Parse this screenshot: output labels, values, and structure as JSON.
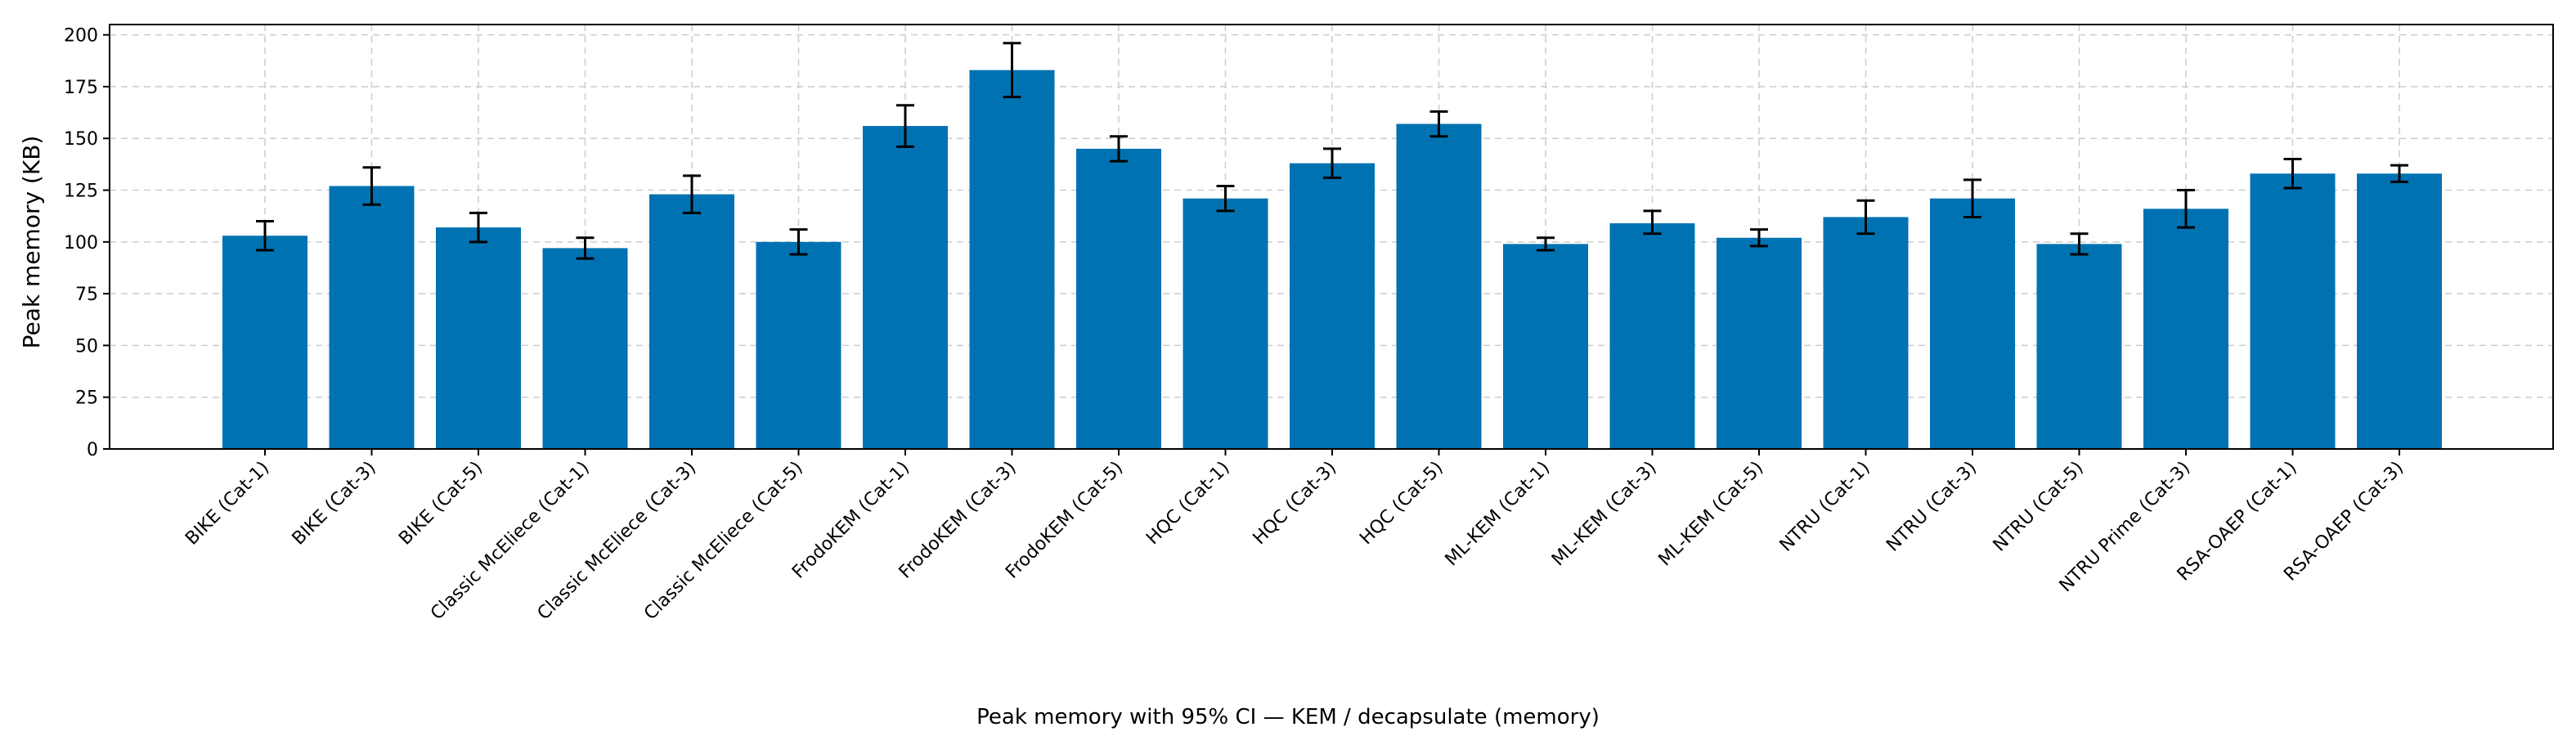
{
  "chart_data": {
    "type": "bar",
    "caption": "Peak memory with 95% CI — KEM / decapsulate (memory)",
    "ylabel": "Peak memory (KB)",
    "xlabel": "",
    "ylim": [
      0,
      205
    ],
    "yticks": [
      0,
      25,
      50,
      75,
      100,
      125,
      150,
      175,
      200
    ],
    "grid": true,
    "bar_color": "#0072b2",
    "categories": [
      "BIKE (Cat-1)",
      "BIKE (Cat-3)",
      "BIKE (Cat-5)",
      "Classic McEliece (Cat-1)",
      "Classic McEliece (Cat-3)",
      "Classic McEliece (Cat-5)",
      "FrodoKEM (Cat-1)",
      "FrodoKEM (Cat-3)",
      "FrodoKEM (Cat-5)",
      "HQC (Cat-1)",
      "HQC (Cat-3)",
      "HQC (Cat-5)",
      "ML-KEM (Cat-1)",
      "ML-KEM (Cat-3)",
      "ML-KEM (Cat-5)",
      "NTRU (Cat-1)",
      "NTRU (Cat-3)",
      "NTRU (Cat-5)",
      "NTRU Prime (Cat-3)",
      "RSA-OAEP (Cat-1)",
      "RSA-OAEP (Cat-3)"
    ],
    "values": [
      103,
      127,
      107,
      97,
      123,
      100,
      156,
      183,
      145,
      121,
      138,
      157,
      99,
      109,
      102,
      112,
      121,
      99,
      116,
      133,
      133
    ],
    "ci_low": [
      96,
      118,
      100,
      92,
      114,
      94,
      146,
      170,
      139,
      115,
      131,
      151,
      96,
      104,
      98,
      104,
      112,
      94,
      107,
      126,
      129
    ],
    "ci_high": [
      110,
      136,
      114,
      102,
      132,
      106,
      166,
      196,
      151,
      127,
      145,
      163,
      102,
      115,
      106,
      120,
      130,
      104,
      125,
      140,
      137
    ]
  }
}
